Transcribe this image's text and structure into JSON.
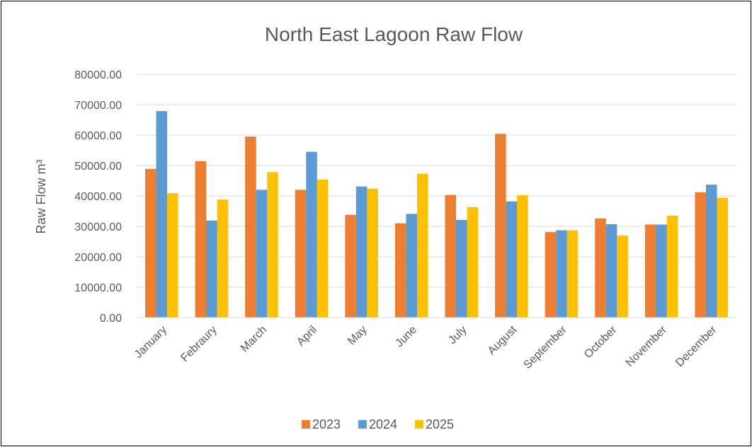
{
  "chart_data": {
    "type": "bar",
    "title": "North East Lagoon Raw Flow",
    "y_label": "Raw Flow m³",
    "categories": [
      "January",
      "Febraury",
      "March",
      "April",
      "May",
      "June",
      "July",
      "August",
      "September",
      "October",
      "November",
      "December"
    ],
    "series": [
      {
        "name": "2023",
        "color": "#ed7d31",
        "values": [
          48900,
          51400,
          59500,
          42000,
          33800,
          31000,
          40300,
          60400,
          28100,
          32600,
          30600,
          41200
        ]
      },
      {
        "name": "2024",
        "color": "#5b9bd5",
        "values": [
          67900,
          31900,
          42000,
          54500,
          43100,
          34100,
          32100,
          38200,
          28700,
          30700,
          30600,
          43700
        ]
      },
      {
        "name": "2025",
        "color": "#ffc000",
        "values": [
          40900,
          38800,
          47800,
          45400,
          42400,
          47300,
          36300,
          40200,
          28700,
          27000,
          33500,
          39400
        ]
      }
    ],
    "ylim": [
      0,
      80000
    ],
    "yticks": [
      {
        "value": 0,
        "label": "0.00"
      },
      {
        "value": 10000,
        "label": "10000.00"
      },
      {
        "value": 20000,
        "label": "20000.00"
      },
      {
        "value": 30000,
        "label": "30000.00"
      },
      {
        "value": 40000,
        "label": "40000.00"
      },
      {
        "value": 50000,
        "label": "50000.00"
      },
      {
        "value": 60000,
        "label": "60000.00"
      },
      {
        "value": 70000,
        "label": "70000.00"
      },
      {
        "value": 80000,
        "label": "80000.00"
      }
    ],
    "grid": true,
    "legend": "bottom"
  }
}
